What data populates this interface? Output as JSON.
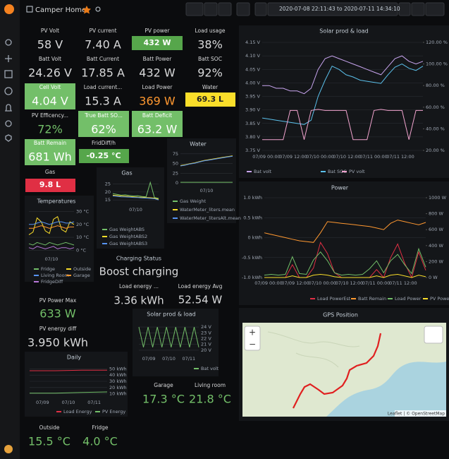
{
  "header": {
    "title": "Camper Home",
    "time_range": "2020-07-08 22:11:43 to 2020-07-11 14:34:10"
  },
  "stats": [
    {
      "title": "PV Volt",
      "value": "58 V"
    },
    {
      "title": "PV current",
      "value": "7.40 A"
    },
    {
      "title": "PV power",
      "value": "432 W",
      "color": "#56a64b",
      "mode": "background"
    },
    {
      "title": "Load usage",
      "value": "38%"
    },
    {
      "title": "Batt Volt",
      "value": "24.26 V"
    },
    {
      "title": "Batt Current",
      "value": "17.85 A"
    },
    {
      "title": "Batt Power",
      "value": "432 W"
    },
    {
      "title": "Batt SOC",
      "value": "92%"
    },
    {
      "title": "Cell Volt",
      "value": "4.04 V",
      "color": "#73bf69",
      "mode": "background"
    },
    {
      "title": "Load current...",
      "value": "15.3 A"
    },
    {
      "title": "Load Power",
      "value": "369 W",
      "color": "#ff9830",
      "mode": "text"
    },
    {
      "title": "Water",
      "value": "69.3 L",
      "color": "#fade2a",
      "mode": "background"
    },
    {
      "title": "PV Efficency...",
      "value": "72%",
      "color": "#73bf69",
      "mode": "text"
    },
    {
      "title": "True Batt SO...",
      "value": "62%",
      "color": "#73bf69",
      "mode": "background"
    },
    {
      "title": "Batt Deficit",
      "value": "63.2 W",
      "color": "#73bf69",
      "mode": "background"
    },
    {
      "title": "Batt Remain",
      "value": "681 Wh",
      "color": "#73bf69",
      "mode": "background"
    },
    {
      "title": "FridDiff/h",
      "value": "-0.25 °C",
      "color": "#56a64b",
      "mode": "background"
    },
    {
      "title": "Gas",
      "value": "9.8 L",
      "color": "#e02f44",
      "mode": "background"
    },
    {
      "title": "Load energy ...",
      "value": "3.36 kWh"
    },
    {
      "title": "Load energy Avg",
      "value": "52.54 W"
    },
    {
      "title": "PV Power Max",
      "value": "633 W",
      "color": "#73bf69",
      "mode": "text"
    },
    {
      "title": "PV energy diff",
      "value": "3.950 kWh"
    },
    {
      "title": "Garage",
      "value": "17.3 °C",
      "color": "#73bf69",
      "mode": "text"
    },
    {
      "title": "Living room",
      "value": "21.8 °C",
      "color": "#73bf69",
      "mode": "text"
    },
    {
      "title": "Outside",
      "value": "15.5 °C",
      "color": "#73bf69",
      "mode": "text"
    },
    {
      "title": "Fridge",
      "value": "4.0 °C",
      "color": "#73bf69",
      "mode": "text"
    }
  ],
  "charging": {
    "title": "Charging Status",
    "value": "Boost charging"
  },
  "charts": [
    {
      "type": "line",
      "title": "Solar prod & load",
      "ylim": [
        3.75,
        4.15
      ],
      "yticks": [
        {
          "value": 4.15,
          "label": "4.15 V"
        },
        {
          "value": 4.1,
          "label": "4.10 V"
        },
        {
          "value": 4.05,
          "label": "4.05 V"
        },
        {
          "value": 4.0,
          "label": "4.00 V"
        },
        {
          "value": 3.95,
          "label": "3.95 V"
        },
        {
          "value": 3.9,
          "label": "3.90 V"
        },
        {
          "value": 3.85,
          "label": "3.85 V"
        },
        {
          "value": 3.8,
          "label": "3.80 V"
        },
        {
          "value": 3.75,
          "label": "3.75 V"
        }
      ],
      "y2lim": [
        20,
        120
      ],
      "y2ticks": [
        {
          "value": 120,
          "label": "120.00 %"
        },
        {
          "value": 100,
          "label": "100.00 %"
        },
        {
          "value": 80,
          "label": "80.00 %"
        },
        {
          "value": 60,
          "label": "60.00 %"
        },
        {
          "value": 40,
          "label": "40.00 %"
        },
        {
          "value": 20,
          "label": "20.00 %"
        }
      ],
      "xticks": [
        "07/09 00:00",
        "07/09 12:00",
        "07/10 00:00",
        "07/10 12:00",
        "07/11 00:00",
        "07/11 12:00"
      ],
      "grid": true,
      "series": [
        {
          "name": "Bat volt",
          "color": "#c9a5f0",
          "values": [
            3.99,
            3.99,
            3.98,
            3.98,
            3.97,
            3.97,
            3.96,
            3.98,
            4.05,
            4.09,
            4.1,
            4.09,
            4.08,
            4.07,
            4.06,
            4.05,
            4.04,
            4.03,
            4.06,
            4.09,
            4.1,
            4.08,
            4.07,
            4.08
          ]
        },
        {
          "name": "Bat SOC",
          "color": "#5bc0eb",
          "axis": "y2",
          "values": [
            50,
            49,
            48,
            47,
            46,
            45,
            44,
            48,
            70,
            85,
            98,
            95,
            90,
            88,
            85,
            84,
            83,
            82,
            90,
            97,
            100,
            96,
            94,
            98
          ]
        },
        {
          "name": "PV volt",
          "color": "#f2a4cf",
          "axis": "y2",
          "values": [
            30,
            30,
            30,
            30,
            57,
            57,
            30,
            57,
            58,
            57,
            57,
            57,
            57,
            30,
            30,
            30,
            57,
            58,
            57,
            57,
            57,
            30,
            57,
            57
          ]
        }
      ]
    },
    {
      "type": "line",
      "title": "Power",
      "ylim": [
        -1,
        1
      ],
      "yticks": [
        {
          "value": 1,
          "label": "1.0 kWh"
        },
        {
          "value": 0.5,
          "label": "0.5 kWh"
        },
        {
          "value": 0,
          "label": "0 kWh"
        },
        {
          "value": -0.5,
          "label": "-0.5 kWh"
        },
        {
          "value": -1,
          "label": "-1.0 kWh"
        }
      ],
      "y2lim": [
        0,
        1000
      ],
      "y2ticks": [
        {
          "value": 1000,
          "label": "1000 W"
        },
        {
          "value": 800,
          "label": "800 W"
        },
        {
          "value": 600,
          "label": "600 W"
        },
        {
          "value": 400,
          "label": "400 W"
        },
        {
          "value": 200,
          "label": "200 W"
        },
        {
          "value": 0,
          "label": "0 W"
        }
      ],
      "xticks": [
        "07/09 00:00",
        "07/09 12:00",
        "07/10 00:00",
        "07/10 12:00",
        "07/11 00:00",
        "07/11 12:00"
      ],
      "grid": true,
      "series": [
        {
          "name": "Load PowerEst",
          "color": "#e02f44",
          "axis": "y2",
          "values": [
            0,
            0,
            0,
            0,
            160,
            0,
            0,
            120,
            440,
            300,
            60,
            0,
            0,
            0,
            0,
            0,
            100,
            0,
            250,
            420,
            180,
            0,
            320,
            90
          ]
        },
        {
          "name": "Batt Remain",
          "color": "#ff9830",
          "axis": "y2",
          "values": [
            560,
            540,
            520,
            500,
            480,
            460,
            450,
            440,
            560,
            700,
            690,
            680,
            670,
            660,
            650,
            640,
            620,
            600,
            680,
            720,
            700,
            680,
            660,
            690
          ]
        },
        {
          "name": "Load Power",
          "color": "#73bf69",
          "axis": "y2",
          "values": [
            30,
            40,
            30,
            40,
            260,
            50,
            40,
            220,
            320,
            210,
            60,
            30,
            40,
            30,
            40,
            110,
            210,
            60,
            210,
            290,
            160,
            50,
            360,
            130
          ]
        },
        {
          "name": "PV Power",
          "color": "#fade2a",
          "axis": "y2",
          "values": [
            0,
            0,
            0,
            0,
            20,
            0,
            0,
            30,
            40,
            30,
            10,
            0,
            0,
            0,
            0,
            0,
            20,
            0,
            30,
            40,
            20,
            0,
            30,
            10
          ]
        }
      ]
    },
    {
      "type": "line",
      "title": "Water",
      "ylim": [
        -5,
        82
      ],
      "yticks": [
        75,
        50,
        25,
        0
      ],
      "xticks": [
        "07/10"
      ],
      "grid": true,
      "series": [
        {
          "name": "Gas Weight",
          "color": "#73bf69",
          "values": [
            2,
            2,
            2,
            2,
            2,
            2,
            2,
            2,
            2,
            2,
            2,
            2
          ]
        },
        {
          "name": "WaterMeter_liters.mean",
          "color": "#fade2a",
          "values": [
            45,
            47,
            50,
            52,
            55,
            58,
            60,
            62,
            64,
            66,
            68,
            70
          ]
        },
        {
          "name": "WaterMeter_litersAlt.mean",
          "color": "#5794f2",
          "values": [
            44,
            46,
            49,
            51,
            54,
            57,
            59,
            61,
            63,
            65,
            67,
            69
          ]
        }
      ]
    },
    {
      "type": "line",
      "title": "Gas",
      "ylim": [
        12,
        27
      ],
      "yticks": [
        25,
        20,
        15
      ],
      "xticks": [
        "07/10"
      ],
      "grid": true,
      "series": [
        {
          "name": "Gas WeightABS",
          "color": "#73bf69",
          "values": [
            19,
            18.5,
            18,
            18.2,
            17.8,
            17.5,
            17.6,
            17.2,
            17,
            26,
            16.5,
            16
          ]
        },
        {
          "name": "Gas WeightABS2",
          "color": "#fade2a",
          "values": [
            18,
            17.8,
            17.5,
            17.4,
            17.2,
            17,
            16.8,
            16.7,
            16.5,
            16.4,
            16.2,
            15.5
          ]
        },
        {
          "name": "Gas WeightABS3",
          "color": "#5794f2",
          "values": [
            17.5,
            17.3,
            17,
            16.9,
            16.8,
            16.6,
            16.5,
            16.3,
            16.2,
            16,
            15.8,
            15
          ]
        }
      ]
    },
    {
      "type": "line",
      "title": "Temperatures",
      "ylim": [
        -2,
        33
      ],
      "y_side": "right",
      "yticks": [
        {
          "value": 30,
          "label": "30 °C"
        },
        {
          "value": 20,
          "label": "20 °C"
        },
        {
          "value": 10,
          "label": "10 °C"
        },
        {
          "value": 0,
          "label": "0 °C"
        }
      ],
      "xticks": [
        "07/10"
      ],
      "grid": true,
      "series": [
        {
          "name": "Fridge",
          "color": "#73bf69",
          "values": [
            5,
            4,
            6,
            5,
            4,
            6,
            5,
            4,
            5,
            6,
            5,
            4
          ]
        },
        {
          "name": "Outside",
          "color": "#fade2a",
          "values": [
            12,
            14,
            25,
            22,
            15,
            13,
            24,
            26,
            16,
            14,
            22,
            20
          ]
        },
        {
          "name": "Living Room",
          "color": "#5794f2",
          "values": [
            20,
            20,
            21,
            22,
            21,
            20,
            21,
            22,
            22,
            21,
            21,
            22
          ]
        },
        {
          "name": "Garage",
          "color": "#ff9830",
          "values": [
            17,
            17,
            18,
            19,
            18,
            17,
            18,
            19,
            18,
            17,
            18,
            18
          ]
        },
        {
          "name": "FridgeDiff",
          "color": "#b877d9",
          "values": [
            2,
            1,
            3,
            2,
            1,
            2,
            3,
            1,
            2,
            2,
            1,
            2
          ]
        }
      ]
    },
    {
      "type": "line",
      "title": "Solar prod & load",
      "ylim": [
        19.5,
        24.5
      ],
      "y_side": "right",
      "yticks": [
        {
          "value": 24,
          "label": "24 V"
        },
        {
          "value": 23,
          "label": "23 V"
        },
        {
          "value": 22,
          "label": "22 V"
        },
        {
          "value": 21,
          "label": "21 V"
        },
        {
          "value": 20,
          "label": "20 V"
        }
      ],
      "xticks": [
        "07/09",
        "07/10",
        "07/11"
      ],
      "grid": true,
      "series": [
        {
          "name": "Bat volt",
          "color": "#73bf69",
          "values": [
            24,
            20.5,
            24,
            20.5,
            24,
            20.5,
            24,
            20.5,
            24,
            20.5,
            24,
            20.5,
            24,
            20.5
          ]
        }
      ]
    },
    {
      "type": "line",
      "title": "Daily",
      "ylim": [
        5,
        55
      ],
      "y_side": "right",
      "yticks": [
        {
          "value": 50,
          "label": "50 kWh"
        },
        {
          "value": 40,
          "label": "40 kWh"
        },
        {
          "value": 30,
          "label": "30 kWh"
        },
        {
          "value": 20,
          "label": "20 kWh"
        },
        {
          "value": 10,
          "label": "10 kWh"
        }
      ],
      "xticks": [
        "07/09",
        "07/10",
        "07/11"
      ],
      "grid": true,
      "series": [
        {
          "name": "Load Energy",
          "color": "#e02f44",
          "values": [
            47,
            47,
            48,
            48
          ]
        },
        {
          "name": "PV Energy",
          "color": "#73bf69",
          "values": [
            11,
            11,
            12,
            13
          ]
        }
      ]
    }
  ],
  "map": {
    "title": "GPS Position",
    "zoom_in": "+",
    "zoom_out": "−",
    "attribution": "Leaflet | © OpenStreetMap"
  }
}
